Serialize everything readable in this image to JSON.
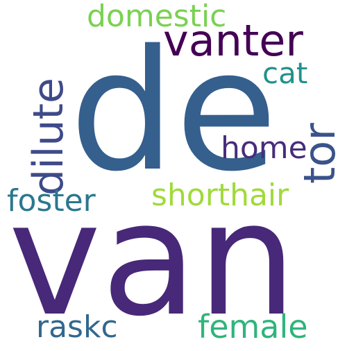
{
  "word_cloud": {
    "words": [
      {
        "text": "van",
        "color": "#482878"
      },
      {
        "text": "de",
        "color": "#355f8d"
      },
      {
        "text": "vanter",
        "color": "#440154"
      },
      {
        "text": "domestic",
        "color": "#7ad151"
      },
      {
        "text": "tor",
        "color": "#3b528b"
      },
      {
        "text": "dilute",
        "color": "#3e4a89"
      },
      {
        "text": "cat",
        "color": "#21918c"
      },
      {
        "text": "home",
        "color": "#472d7b"
      },
      {
        "text": "shorthair",
        "color": "#a0da39"
      },
      {
        "text": "foster",
        "color": "#2a788e"
      },
      {
        "text": "raskc",
        "color": "#31688e"
      },
      {
        "text": "female",
        "color": "#2fb47c"
      }
    ]
  }
}
